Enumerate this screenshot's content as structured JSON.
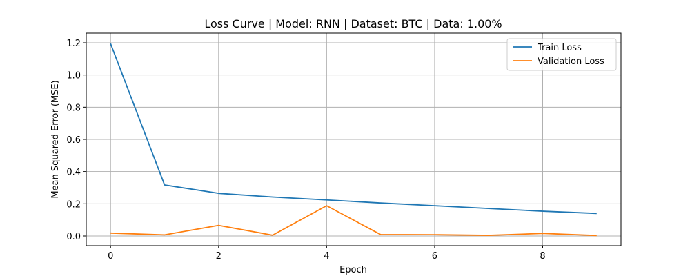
{
  "chart_data": {
    "type": "line",
    "title": "Loss Curve | Model: RNN | Dataset: BTC | Data: 1.00%",
    "xlabel": "Epoch",
    "ylabel": "Mean Squared Error (MSE)",
    "x": [
      0,
      1,
      2,
      3,
      4,
      5,
      6,
      7,
      8,
      9
    ],
    "xlim": [
      -0.45,
      9.45
    ],
    "ylim": [
      -0.06,
      1.26
    ],
    "xticks": [
      0,
      2,
      4,
      6,
      8
    ],
    "yticks": [
      0.0,
      0.2,
      0.4,
      0.6,
      0.8,
      1.0,
      1.2
    ],
    "xtick_labels": [
      "0",
      "2",
      "4",
      "6",
      "8"
    ],
    "ytick_labels": [
      "0.0",
      "0.2",
      "0.4",
      "0.6",
      "0.8",
      "1.0",
      "1.2"
    ],
    "grid": true,
    "legend_position": "top-right",
    "series": [
      {
        "name": "Train Loss",
        "color": "#1f77b4",
        "values": [
          1.195,
          0.317,
          0.265,
          0.242,
          0.224,
          0.205,
          0.188,
          0.171,
          0.154,
          0.14
        ]
      },
      {
        "name": "Validation Loss",
        "color": "#ff7f0e",
        "values": [
          0.018,
          0.007,
          0.066,
          0.005,
          0.188,
          0.009,
          0.008,
          0.004,
          0.016,
          0.003
        ]
      }
    ]
  }
}
